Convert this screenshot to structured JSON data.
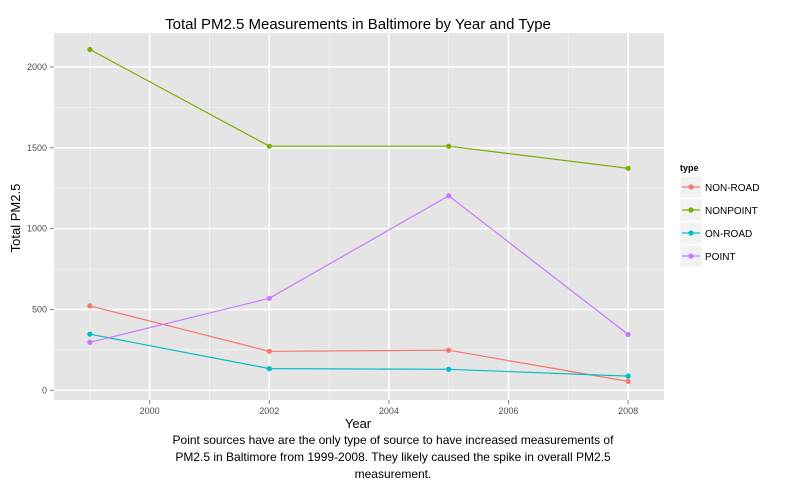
{
  "chart_data": {
    "type": "line",
    "title": "Total PM2.5 Measurements in Baltimore by Year and Type",
    "xlabel": "Year",
    "ylabel": "Total PM2.5",
    "x": [
      1999,
      2002,
      2005,
      2008
    ],
    "xlim": [
      1998.4,
      2008.6
    ],
    "ylim": [
      -60,
      2210
    ],
    "xticks": [
      2000,
      2002,
      2004,
      2006,
      2008
    ],
    "yticks": [
      0,
      500,
      1000,
      1500,
      2000
    ],
    "grid": true,
    "legend": {
      "title": "type",
      "position": "right"
    },
    "series": [
      {
        "name": "NON-ROAD",
        "color": "#F8766D",
        "values": [
          522,
          241,
          248,
          55
        ]
      },
      {
        "name": "NONPOINT",
        "color": "#7CAE00",
        "values": [
          2108,
          1510,
          1510,
          1373
        ]
      },
      {
        "name": "ON-ROAD",
        "color": "#00BFC4",
        "values": [
          347,
          134,
          130,
          88
        ]
      },
      {
        "name": "POINT",
        "color": "#C77CFF",
        "values": [
          297,
          569,
          1203,
          345
        ]
      }
    ]
  },
  "caption": "Point sources have are the only type of source to have increased measurements of PM2.5 in Baltimore from 1999-2008. They likely caused the spike in overall PM2.5 measurement."
}
